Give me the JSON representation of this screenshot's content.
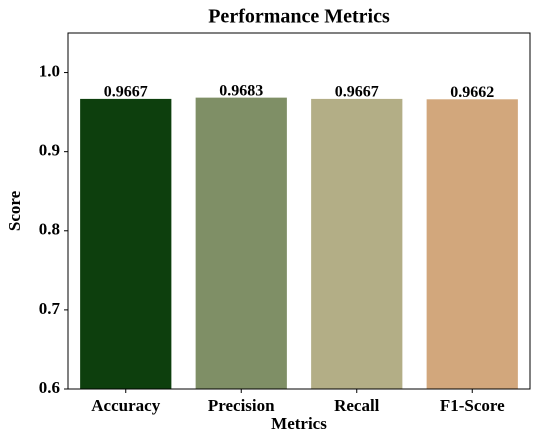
{
  "chart_data": {
    "type": "bar",
    "title": "Performance Metrics",
    "xlabel": "Metrics",
    "ylabel": "Score",
    "categories": [
      "Accuracy",
      "Precision",
      "Recall",
      "F1-Score"
    ],
    "values": [
      0.9667,
      0.9683,
      0.9667,
      0.9662
    ],
    "colors": [
      "#0d3f0d",
      "#7f8f66",
      "#b3ae86",
      "#d2a77c"
    ],
    "ylim": [
      0.6,
      1.05
    ],
    "yticks": [
      0.6,
      0.7,
      0.8,
      0.9,
      {
        "value": 1.0,
        "label": "1.0"
      }
    ],
    "grid": false
  }
}
